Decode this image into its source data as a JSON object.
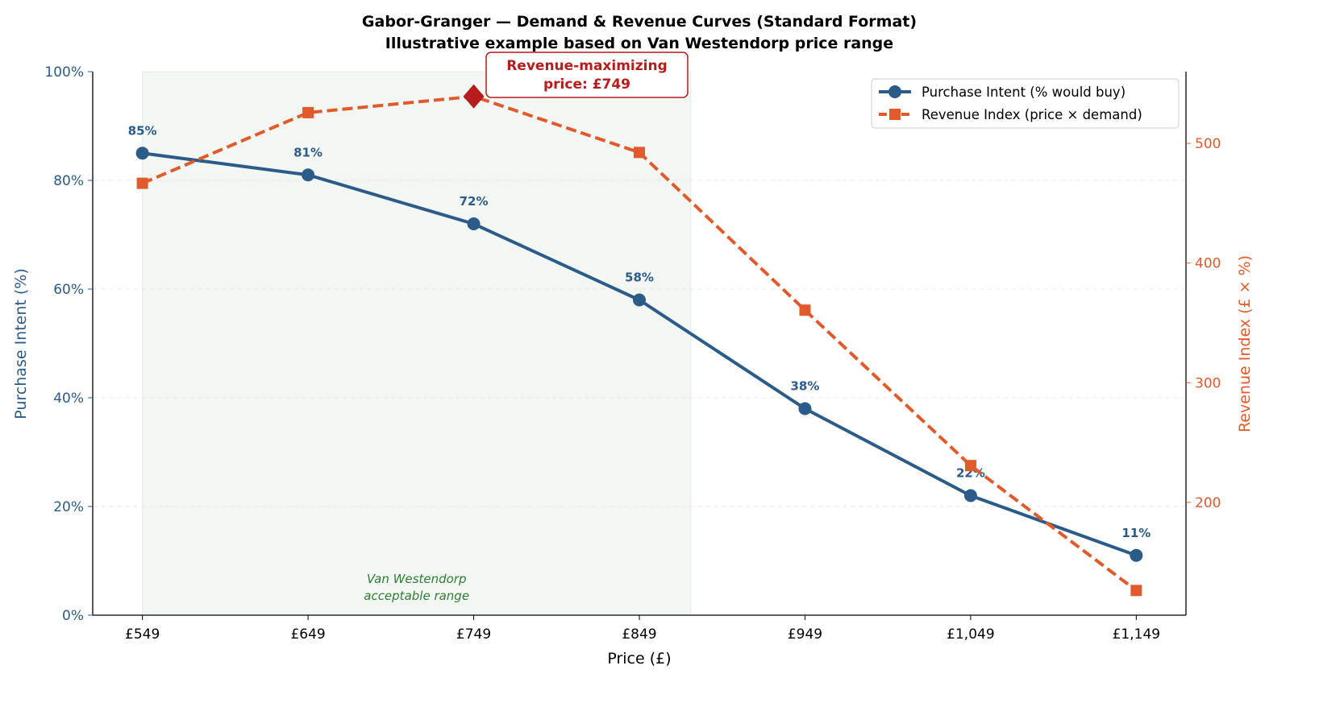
{
  "chart_data": {
    "type": "line",
    "title": "Gabor-Granger — Demand & Revenue Curves (Standard Format)",
    "subtitle": "Illustrative example based on Van Westendorp price range",
    "xlabel": "Price (£)",
    "ylabel": "Purchase Intent (%)",
    "ylabel_right": "Revenue Index (£ × %)",
    "x": [
      549,
      649,
      749,
      849,
      949,
      1049,
      1149
    ],
    "x_tick_labels": [
      "£549",
      "£649",
      "£749",
      "£849",
      "£949",
      "£1,049",
      "£1,149"
    ],
    "xlim": [
      519,
      1179
    ],
    "ylim": [
      0,
      100
    ],
    "y_ticks": [
      0,
      20,
      40,
      60,
      80,
      100
    ],
    "y_tick_labels": [
      "0%",
      "20%",
      "40%",
      "60%",
      "80%",
      "100%"
    ],
    "ylim_right": [
      105.75,
      559.93
    ],
    "y_ticks_right": [
      200,
      300,
      400,
      500
    ],
    "y_tick_labels_right": [
      "200",
      "300",
      "400",
      "500"
    ],
    "grid": "horizontal dashed",
    "legend_position": "top-right",
    "series": [
      {
        "name": "Purchase Intent (% would buy)",
        "axis": "left",
        "style": "solid-circle",
        "color": "#2b5b88",
        "values": [
          85,
          81,
          72,
          58,
          38,
          22,
          11
        ],
        "labels": [
          "85%",
          "81%",
          "72%",
          "58%",
          "38%",
          "22%",
          "11%"
        ]
      },
      {
        "name": "Revenue Index (price × demand)",
        "axis": "right",
        "style": "dashed-square",
        "color": "#e05a2b",
        "values": [
          466.65,
          525.69,
          539.28,
          492.42,
          360.62,
          230.78,
          126.39
        ]
      }
    ],
    "shaded_region": {
      "x_range": [
        549,
        880
      ],
      "label_line1": "Van Westendorp",
      "label_line2": "acceptable range",
      "color": "#2e7d32"
    },
    "annotation": {
      "line1": "Revenue-maximizing",
      "line2": "price: £749",
      "x": 749,
      "y": 539.28,
      "color": "#b71c1c"
    }
  }
}
